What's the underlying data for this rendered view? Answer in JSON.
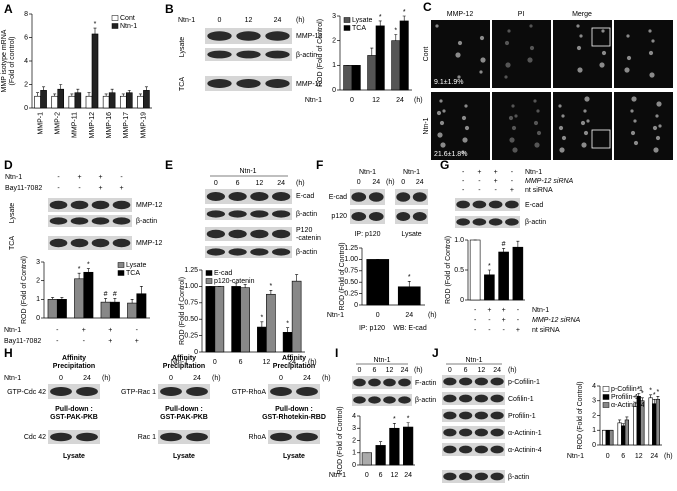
{
  "panel_letters": [
    "A",
    "B",
    "C",
    "D",
    "E",
    "F",
    "G",
    "H",
    "I",
    "J"
  ],
  "panels": {
    "B": {
      "treatment": "Ntn-1",
      "times": [
        "0",
        "12",
        "24"
      ],
      "unit": "(h)",
      "fractions": [
        "Lysate",
        "TCA"
      ],
      "bands": [
        "MMP-12",
        "β-actin",
        "MMP-12"
      ]
    },
    "C": {
      "columns": [
        "MMP-12",
        "PI",
        "Merge"
      ],
      "rows": [
        "Cont",
        "Ntn-1"
      ],
      "percentages": [
        "9.1±1.9%",
        "21.6±1.8%"
      ]
    },
    "D": {
      "rows": [
        {
          "label": "Ntn-1",
          "values": [
            "-",
            "+",
            "+",
            "-"
          ]
        },
        {
          "label": "Bay11-7082",
          "values": [
            "-",
            "-",
            "+",
            "+"
          ]
        }
      ],
      "fractions": [
        "Lysate",
        "TCA"
      ],
      "bands": [
        "MMP-12",
        "β-actin",
        "MMP-12"
      ]
    },
    "E": {
      "treatment": "Ntn-1",
      "times": [
        "0",
        "6",
        "12",
        "24"
      ],
      "unit": "(h)",
      "bands": [
        "E-cad",
        "β-actin",
        [
          "P120",
          "-catenin"
        ],
        "β-actin"
      ]
    },
    "F": {
      "treatment": "Ntn-1",
      "times": [
        "0",
        "24"
      ],
      "unit": "(h)",
      "bands": [
        "E-cad",
        "p120"
      ],
      "groups": [
        "IP: p120",
        "Lysate"
      ]
    },
    "G": {
      "rows": [
        {
          "label": "Ntn-1",
          "values": [
            "-",
            "+",
            "+",
            "-"
          ]
        },
        {
          "label": "MMP-12 siRNA",
          "values": [
            "-",
            "-",
            "+",
            "-"
          ]
        },
        {
          "label": "nt siRNA",
          "values": [
            "-",
            "-",
            "-",
            "+"
          ]
        }
      ],
      "bands": [
        "E-cad",
        "β-actin"
      ]
    },
    "H": {
      "treatment": "Ntn-1",
      "times": [
        "0",
        "24"
      ],
      "unit": "(h)",
      "header": [
        "Affinity",
        "Precipitation"
      ],
      "pulldown": "Pull-down :",
      "lysate": "Lysate",
      "assays": [
        {
          "active": "GTP-Cdc 42",
          "probe": "GST-PAK-PKB",
          "total": "Cdc 42"
        },
        {
          "active": "GTP-Rac 1",
          "probe": "GST-PAK-PKB",
          "total": "Rac 1"
        },
        {
          "active": "GTP-RhoA",
          "probe": "GST-Rhotekin-RBD",
          "total": "RhoA"
        }
      ]
    },
    "I": {
      "treatment": "Ntn-1",
      "times": [
        "0",
        "6",
        "12",
        "24"
      ],
      "unit": "(h)",
      "bands": [
        "F-actin",
        "β-actin"
      ]
    },
    "J": {
      "treatment": "Ntn-1",
      "times": [
        "0",
        "6",
        "12",
        "24"
      ],
      "unit": "(h)",
      "bands": [
        "p-Cofilin-1",
        "Cofilin-1",
        "Profilin-1",
        "α-Actinin-1",
        "α-Actinin-4",
        "β-actin"
      ]
    }
  },
  "chart_data": [
    {
      "type": "bar",
      "y_label": [
        "MMP isotype mRNA",
        "(Fold of control)"
      ],
      "categories": [
        "MMP-1",
        "MMP-2",
        "MMP-11",
        "MMP-12",
        "MMP-16",
        "MMP-17",
        "MMP-19"
      ],
      "ylim": [
        0,
        8
      ],
      "yticks": [
        0,
        2,
        4,
        6,
        8
      ],
      "series": [
        {
          "name": "Cont",
          "color": "#ffffff",
          "values": [
            1,
            1,
            1,
            1,
            1,
            1,
            1
          ],
          "errors": [
            0.3,
            0.2,
            0.2,
            0.3,
            0.2,
            0.2,
            0.2
          ],
          "sig": [
            null,
            null,
            null,
            null,
            null,
            null,
            null
          ]
        },
        {
          "name": "Ntn-1",
          "color": "#222222",
          "values": [
            1.5,
            1.6,
            1.3,
            6.3,
            1.3,
            1.3,
            1.5
          ],
          "errors": [
            0.3,
            0.4,
            0.3,
            0.5,
            0.3,
            0.2,
            0.3
          ],
          "sig": [
            null,
            null,
            null,
            "*",
            null,
            null,
            null
          ]
        }
      ]
    },
    {
      "type": "bar",
      "y_label": "ROD (Fold of Control)",
      "categories": [
        "0",
        "12",
        "24"
      ],
      "x_label": "Ntn-1",
      "x_unit": "(h)",
      "ylim": [
        0,
        3
      ],
      "yticks": [
        0,
        1,
        2,
        3
      ],
      "series": [
        {
          "name": "Lysate",
          "color": "#555555",
          "values": [
            1,
            1.4,
            2.0
          ],
          "errors": [
            0,
            0.3,
            0.25
          ],
          "sig": [
            null,
            null,
            "*"
          ]
        },
        {
          "name": "TCA",
          "color": "#000000",
          "values": [
            1,
            2.6,
            2.8
          ],
          "errors": [
            0,
            0.2,
            0.2
          ],
          "sig": [
            null,
            "*",
            "*"
          ]
        }
      ]
    },
    {
      "type": "bar",
      "y_label": "ROD (Fold of Control)",
      "categories": [
        null,
        null,
        null,
        null
      ],
      "ylim": [
        0,
        3
      ],
      "yticks": [
        0,
        1,
        2,
        3
      ],
      "rows": [
        {
          "label": "Ntn-1",
          "values": [
            "-",
            "+",
            "+",
            "-"
          ]
        },
        {
          "label": "Bay11-7082",
          "values": [
            "-",
            "-",
            "+",
            "+"
          ]
        }
      ],
      "series": [
        {
          "name": "Lysate",
          "color": "#888888",
          "values": [
            1,
            2.1,
            0.85,
            0.8
          ],
          "errors": [
            0.1,
            0.3,
            0.2,
            0.2
          ],
          "sig": [
            null,
            "*",
            "#",
            null
          ]
        },
        {
          "name": "TCA",
          "color": "#000000",
          "values": [
            1,
            2.45,
            0.85,
            1.3
          ],
          "errors": [
            0.1,
            0.2,
            0.2,
            0.4
          ],
          "sig": [
            null,
            "*",
            "#",
            null
          ]
        }
      ]
    },
    {
      "type": "bar",
      "y_label": "ROD (Fold of Control)",
      "categories": [
        "0",
        "6",
        "12",
        "24"
      ],
      "x_label": "Ntn-1",
      "x_unit": "(h)",
      "ylim": [
        0,
        1.25
      ],
      "yticks": [
        0,
        0.25,
        {
          "value": 0.5,
          "label": "0.50"
        },
        0.75,
        {
          "value": 1,
          "label": "1.00"
        },
        1.25
      ],
      "series": [
        {
          "name": "E-cad",
          "color": "#000000",
          "values": [
            1,
            1,
            0.38,
            0.3
          ],
          "errors": [
            0,
            0.05,
            0.08,
            0.07
          ],
          "sig": [
            null,
            null,
            "*",
            "*"
          ]
        },
        {
          "name": "p120-catenin",
          "color": "#888888",
          "values": [
            1,
            0.98,
            0.88,
            1.08
          ],
          "errors": [
            0,
            0.05,
            0.06,
            0.1
          ],
          "sig": [
            null,
            null,
            "*",
            null
          ]
        }
      ]
    },
    {
      "type": "bar",
      "y_label": "ROD (Fold of Control)",
      "categories": [
        "0",
        "24"
      ],
      "x_label": "Ntn-1",
      "x_unit": "(h)",
      "footer": [
        "IP: p120",
        "WB: E-cad"
      ],
      "ylim": [
        0,
        1.25
      ],
      "yticks": [
        0,
        0.25,
        {
          "value": 0.5,
          "label": "0.50"
        },
        0.75,
        {
          "value": 1,
          "label": "1.00"
        },
        1.25
      ],
      "series": [
        {
          "color": "#000000",
          "values": [
            1,
            0.4
          ],
          "errors": [
            0,
            0.12
          ],
          "sig": [
            null,
            "*"
          ]
        }
      ]
    },
    {
      "type": "bar",
      "y_label": "ROD (Fold of Control)",
      "categories": [
        null,
        null,
        null,
        null
      ],
      "ylim": [
        0,
        1
      ],
      "yticks": [
        0,
        0.5,
        {
          "value": 1,
          "label": "1.0"
        }
      ],
      "rows": [
        {
          "label": "Ntn-1",
          "values": [
            "-",
            "+",
            "+",
            "-"
          ]
        },
        {
          "label": "MMP-12 siRNA",
          "values": [
            "-",
            "-",
            "+",
            "-"
          ]
        },
        {
          "label": "nt siRNA",
          "values": [
            "-",
            "-",
            "-",
            "+"
          ]
        }
      ],
      "series": [
        {
          "colors": [
            "#ffffff",
            "#000000",
            "#000000",
            "#000000"
          ],
          "values": [
            1,
            0.42,
            0.8,
            0.88
          ],
          "errors": [
            0,
            0.08,
            0.06,
            0.1
          ],
          "sig": [
            null,
            "*",
            "#",
            null
          ]
        }
      ]
    },
    {
      "type": "bar",
      "y_label": "ROD (Fold of Control)",
      "categories": [
        "0",
        "6",
        "12",
        "24"
      ],
      "x_label": "Ntn-1",
      "ylim": [
        0,
        4
      ],
      "yticks": [
        0,
        1,
        2,
        3,
        4
      ],
      "series": [
        {
          "colors": [
            "#aaaaaa",
            "#000000",
            "#000000",
            "#000000"
          ],
          "values": [
            1,
            1.6,
            3.0,
            3.1
          ],
          "errors": [
            0,
            0.3,
            0.4,
            0.35
          ],
          "sig": [
            null,
            null,
            "*",
            "*"
          ]
        }
      ]
    },
    {
      "type": "bar",
      "y_label": "ROD (Fold of Control)",
      "categories": [
        "0",
        "6",
        "12",
        "24"
      ],
      "x_label": "Ntn-1",
      "x_unit": "(h)",
      "ylim": [
        0,
        4
      ],
      "yticks": [
        0,
        1,
        2,
        3,
        4
      ],
      "series": [
        {
          "name": "p-Cofilin-1",
          "color": "#ffffff",
          "values": [
            1,
            1.5,
            2.6,
            3.2
          ],
          "errors": [
            0,
            0.2,
            0.3,
            0.2
          ],
          "sig": [
            null,
            null,
            "*",
            "*"
          ]
        },
        {
          "name": "Profilin-1",
          "color": "#000000",
          "values": [
            1,
            1.3,
            3.3,
            2.8
          ],
          "errors": [
            0,
            0.15,
            0.2,
            0.3
          ],
          "sig": [
            null,
            null,
            "*",
            "*"
          ]
        },
        {
          "name": "α-Actinin-4",
          "color": "#888888",
          "values": [
            1,
            1.7,
            3.0,
            3.1
          ],
          "errors": [
            0,
            0.2,
            0.2,
            0.2
          ],
          "sig": [
            null,
            null,
            "*",
            "*"
          ]
        }
      ]
    }
  ]
}
